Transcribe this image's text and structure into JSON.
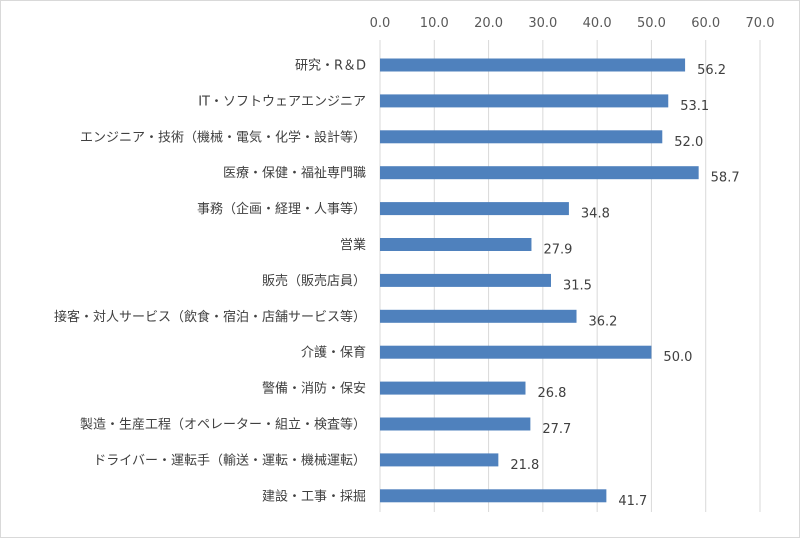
{
  "chart_data": {
    "type": "bar",
    "orientation": "horizontal",
    "categories": [
      "研究・R＆D",
      "IT・ソフトウェアエンジニア",
      "エンジニア・技術（機械・電気・化学・設計等）",
      "医療・保健・福祉専門職",
      "事務（企画・経理・人事等）",
      "営業",
      "販売（販売店員）",
      "接客・対人サービス（飲食・宿泊・店舗サービス等）",
      "介護・保育",
      "警備・消防・保安",
      "製造・生産工程（オペレーター・組立・検査等）",
      "ドライバー・運転手（輸送・運転・機械運転）",
      "建設・工事・採掘"
    ],
    "values": [
      56.2,
      53.1,
      52.0,
      58.7,
      34.8,
      27.9,
      31.5,
      36.2,
      50.0,
      26.8,
      27.7,
      21.8,
      41.7
    ],
    "value_labels": [
      "56.2",
      "53.1",
      "52.0",
      "58.7",
      "34.8",
      "27.9",
      "31.5",
      "36.2",
      "50.0",
      "26.8",
      "27.7",
      "21.8",
      "41.7"
    ],
    "xlim": [
      0,
      70
    ],
    "x_ticks": [
      0,
      10,
      20,
      30,
      40,
      50,
      60,
      70
    ],
    "x_tick_labels": [
      "0.0",
      "10.0",
      "20.0",
      "30.0",
      "40.0",
      "50.0",
      "60.0",
      "70.0"
    ],
    "x_axis_position": "top",
    "grid": "vertical",
    "legend": "none",
    "bar_color": "#4f81bd",
    "grid_color": "#d9d9d9"
  }
}
